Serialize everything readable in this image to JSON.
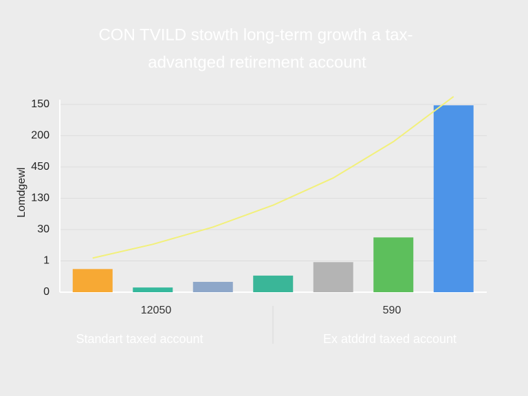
{
  "chart_data": {
    "type": "bar",
    "title": [
      "CON TVILD stowth long-term growth a tax-",
      "advantged retirement account"
    ],
    "y_label": "Lomdgewl",
    "categories": [
      null,
      null,
      null,
      null,
      null,
      null,
      null
    ],
    "values": [
      0.74,
      0.15,
      0.33,
      0.53,
      0.96,
      1.75,
      5.97
    ],
    "colors": [
      "#f7a934",
      "#35b89c",
      "#8ea7c9",
      "#3ab698",
      "#b4b4b4",
      "#5dbf5c",
      "#4d94e8"
    ],
    "trend": {
      "color": "#f2f07a",
      "values": [
        1.09,
        1.53,
        2.08,
        2.78,
        3.65,
        4.81,
        6.25
      ]
    },
    "ylim": [
      0,
      6.15
    ],
    "yticks": [
      {
        "value": 0,
        "label": "0"
      },
      {
        "value": 1,
        "label": "1"
      },
      {
        "value": 2,
        "label": "30"
      },
      {
        "value": 3,
        "label": "130"
      },
      {
        "value": 4,
        "label": "450"
      },
      {
        "value": 5,
        "label": "200"
      },
      {
        "value": 6,
        "label": "150"
      }
    ],
    "grid": true,
    "annotations": [
      "12050",
      "590"
    ],
    "groups": [
      "Standart taxed account",
      "Ex atddrd taxed account"
    ]
  }
}
